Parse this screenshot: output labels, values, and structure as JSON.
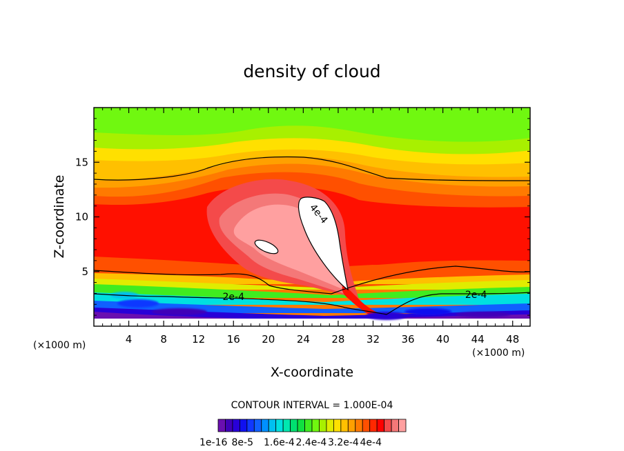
{
  "chart_data": {
    "type": "heatmap",
    "title": "density of cloud",
    "xlabel": "X-coordinate",
    "ylabel": "Z-coordinate",
    "x_unit": "(×1000 m)",
    "x_unit_right": "(×1000 m)",
    "xlim": [
      0,
      50
    ],
    "ylim": [
      0,
      20
    ],
    "x_ticks": [
      4,
      8,
      12,
      16,
      20,
      24,
      28,
      32,
      36,
      40,
      44,
      48
    ],
    "x_tick_labels": [
      "4",
      "8",
      "12",
      "16",
      "20",
      "24",
      "28",
      "32",
      "36",
      "40",
      "44",
      "48"
    ],
    "y_ticks": [
      5,
      10,
      15
    ],
    "y_tick_labels": [
      "5",
      "10",
      "15"
    ],
    "contour_interval_text": "CONTOUR INTERVAL = 1.000E-04",
    "contour_labels": [
      {
        "text": "2e-4",
        "x": 16,
        "z": 2.7,
        "angle": 0
      },
      {
        "text": "2e-4",
        "x": 43.8,
        "z": 2.9,
        "angle": 0
      },
      {
        "text": "4e-4",
        "x": 25.8,
        "z": 10.3,
        "angle": 50
      }
    ],
    "colorbar": {
      "tick_labels": [
        "1e-16",
        "8e-5",
        "1.6e-4",
        "2.4e-4",
        "3.2e-4",
        "4e-4"
      ],
      "colors": [
        "#6a0fb0",
        "#4000b8",
        "#2800d8",
        "#1010f0",
        "#1038ff",
        "#1060ff",
        "#0090ff",
        "#00c0f0",
        "#00e0e0",
        "#00e8b0",
        "#00e070",
        "#10e040",
        "#40ec20",
        "#70f810",
        "#a8f000",
        "#e0ec00",
        "#ffe000",
        "#ffc000",
        "#ffa000",
        "#ff7a00",
        "#ff5000",
        "#ff2800",
        "#ff0000",
        "#f44a4a",
        "#f47878",
        "#ffa0a0"
      ]
    }
  }
}
